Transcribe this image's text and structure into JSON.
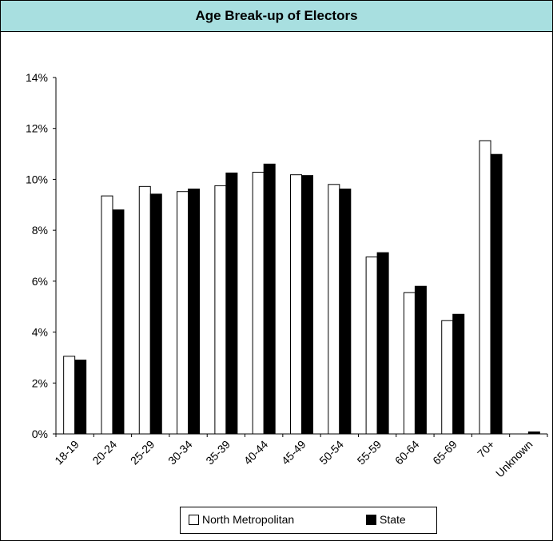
{
  "chart_data": {
    "type": "bar",
    "title": "Age Break-up of Electors",
    "categories": [
      "18-19",
      "20-24",
      "25-29",
      "30-34",
      "35-39",
      "40-44",
      "45-49",
      "50-54",
      "55-59",
      "60-64",
      "65-69",
      "70+",
      "Unknown"
    ],
    "series": [
      {
        "name": "North Metropolitan",
        "values": [
          3.05,
          9.35,
          9.72,
          9.52,
          9.75,
          10.28,
          10.18,
          9.8,
          6.95,
          5.55,
          4.45,
          11.52,
          0.0
        ],
        "color": "#ffffff"
      },
      {
        "name": "State",
        "values": [
          2.9,
          8.8,
          9.42,
          9.62,
          10.25,
          10.6,
          10.15,
          9.62,
          7.12,
          5.8,
          4.7,
          10.98,
          0.08
        ],
        "color": "#000000"
      }
    ],
    "y_ticks": [
      "0%",
      "2%",
      "4%",
      "6%",
      "8%",
      "10%",
      "12%",
      "14%"
    ],
    "ylim": [
      0,
      14
    ],
    "y_unit": "%",
    "grid": false,
    "legend_position": "bottom"
  }
}
